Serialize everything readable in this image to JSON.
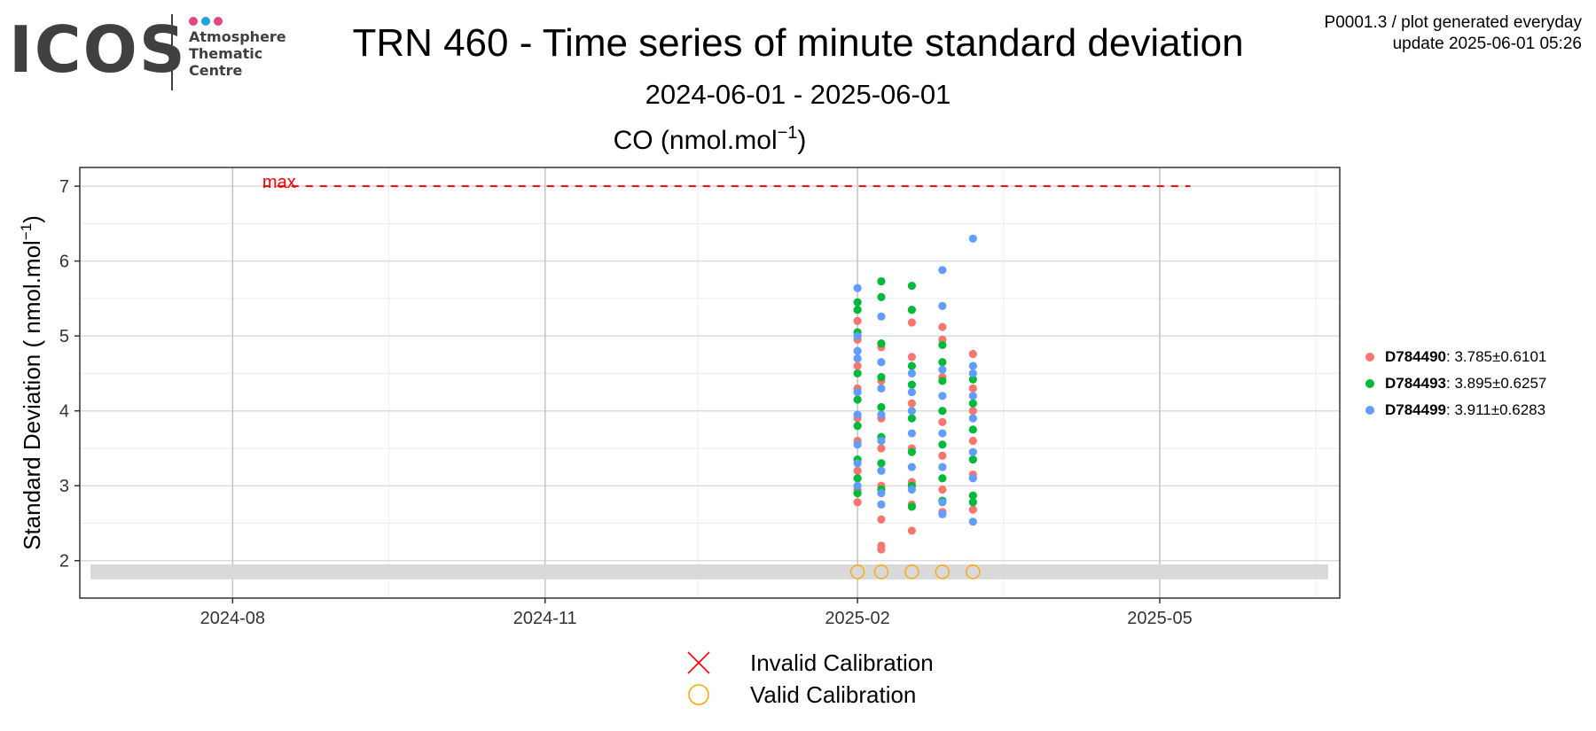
{
  "logo": {
    "word": "ICOS",
    "text_lines": [
      "Atmosphere",
      "Thematic",
      "Centre"
    ],
    "dot_colors": [
      "#e8457f",
      "#1fa4e2",
      "#e8457f"
    ]
  },
  "header": {
    "title": "TRN 460 - Time series of minute standard deviation",
    "subtitle": "2024-06-01 - 2025-06-01",
    "info_line1": "P0001.3 / plot generated everyday",
    "info_line2": "update  2025-06-01 05:26"
  },
  "chart_data": {
    "type": "scatter",
    "title": "CO (nmol.mol⁻¹)",
    "ylabel": "Standard Deviation ( nmol.mol⁻¹)",
    "xlabel": "",
    "xlim": [
      "2024-06-17",
      "2025-06-23"
    ],
    "ylim": [
      1.5,
      7.25
    ],
    "x_ticks": [
      "2024-08-01",
      "2024-11-01",
      "2025-02-01",
      "2025-05-01"
    ],
    "x_tick_labels": [
      "2024-08",
      "2024-11",
      "2025-02",
      "2025-05"
    ],
    "y_ticks": [
      2,
      3,
      4,
      5,
      6,
      7
    ],
    "grid": true,
    "threshold": {
      "label": "max",
      "value": 7,
      "color": "#ff0000",
      "from": "2024-08-10",
      "to": "2025-05-10"
    },
    "band": {
      "range": [
        1.75,
        1.95
      ],
      "color": "#d9d9d9"
    },
    "legend_position": "right",
    "series": [
      {
        "name": "D784490",
        "stat": "3.785",
        "sd": "0.6101",
        "color": "#f8766d",
        "points": [
          [
            "2025-02-01",
            2.78
          ],
          [
            "2025-02-01",
            2.95
          ],
          [
            "2025-02-01",
            3.2
          ],
          [
            "2025-02-01",
            3.6
          ],
          [
            "2025-02-01",
            3.9
          ],
          [
            "2025-02-01",
            4.3
          ],
          [
            "2025-02-01",
            4.6
          ],
          [
            "2025-02-01",
            4.95
          ],
          [
            "2025-02-01",
            5.2
          ],
          [
            "2025-02-08",
            2.15
          ],
          [
            "2025-02-08",
            2.2
          ],
          [
            "2025-02-08",
            2.55
          ],
          [
            "2025-02-08",
            3.0
          ],
          [
            "2025-02-08",
            3.5
          ],
          [
            "2025-02-08",
            3.9
          ],
          [
            "2025-02-08",
            4.4
          ],
          [
            "2025-02-08",
            4.85
          ],
          [
            "2025-02-17",
            2.4
          ],
          [
            "2025-02-17",
            2.75
          ],
          [
            "2025-02-17",
            3.05
          ],
          [
            "2025-02-17",
            3.5
          ],
          [
            "2025-02-17",
            4.1
          ],
          [
            "2025-02-17",
            4.72
          ],
          [
            "2025-02-17",
            5.18
          ],
          [
            "2025-02-26",
            2.65
          ],
          [
            "2025-02-26",
            2.95
          ],
          [
            "2025-02-26",
            3.4
          ],
          [
            "2025-02-26",
            3.85
          ],
          [
            "2025-02-26",
            4.45
          ],
          [
            "2025-02-26",
            4.95
          ],
          [
            "2025-02-26",
            5.12
          ],
          [
            "2025-03-07",
            2.68
          ],
          [
            "2025-03-07",
            3.15
          ],
          [
            "2025-03-07",
            3.6
          ],
          [
            "2025-03-07",
            4.0
          ],
          [
            "2025-03-07",
            4.3
          ],
          [
            "2025-03-07",
            4.76
          ]
        ]
      },
      {
        "name": "D784493",
        "stat": "3.895",
        "sd": "0.6257",
        "color": "#00ba38",
        "points": [
          [
            "2025-02-01",
            2.9
          ],
          [
            "2025-02-01",
            3.1
          ],
          [
            "2025-02-01",
            3.35
          ],
          [
            "2025-02-01",
            3.8
          ],
          [
            "2025-02-01",
            4.15
          ],
          [
            "2025-02-01",
            4.5
          ],
          [
            "2025-02-01",
            5.05
          ],
          [
            "2025-02-01",
            5.35
          ],
          [
            "2025-02-01",
            5.45
          ],
          [
            "2025-02-08",
            2.95
          ],
          [
            "2025-02-08",
            3.3
          ],
          [
            "2025-02-08",
            3.65
          ],
          [
            "2025-02-08",
            4.05
          ],
          [
            "2025-02-08",
            4.45
          ],
          [
            "2025-02-08",
            4.9
          ],
          [
            "2025-02-08",
            5.52
          ],
          [
            "2025-02-08",
            5.73
          ],
          [
            "2025-02-17",
            2.72
          ],
          [
            "2025-02-17",
            3.0
          ],
          [
            "2025-02-17",
            3.45
          ],
          [
            "2025-02-17",
            3.9
          ],
          [
            "2025-02-17",
            4.35
          ],
          [
            "2025-02-17",
            4.6
          ],
          [
            "2025-02-17",
            5.35
          ],
          [
            "2025-02-17",
            5.67
          ],
          [
            "2025-02-26",
            2.8
          ],
          [
            "2025-02-26",
            3.1
          ],
          [
            "2025-02-26",
            3.55
          ],
          [
            "2025-02-26",
            4.0
          ],
          [
            "2025-02-26",
            4.4
          ],
          [
            "2025-02-26",
            4.65
          ],
          [
            "2025-02-26",
            4.88
          ],
          [
            "2025-03-07",
            2.78
          ],
          [
            "2025-03-07",
            2.87
          ],
          [
            "2025-03-07",
            3.35
          ],
          [
            "2025-03-07",
            3.75
          ],
          [
            "2025-03-07",
            4.1
          ],
          [
            "2025-03-07",
            4.42
          ]
        ]
      },
      {
        "name": "D784499",
        "stat": "3.911",
        "sd": "0.6283",
        "color": "#619cff",
        "points": [
          [
            "2025-02-01",
            3.0
          ],
          [
            "2025-02-01",
            3.3
          ],
          [
            "2025-02-01",
            3.55
          ],
          [
            "2025-02-01",
            3.95
          ],
          [
            "2025-02-01",
            4.25
          ],
          [
            "2025-02-01",
            4.7
          ],
          [
            "2025-02-01",
            4.8
          ],
          [
            "2025-02-01",
            5.0
          ],
          [
            "2025-02-01",
            5.64
          ],
          [
            "2025-02-08",
            2.75
          ],
          [
            "2025-02-08",
            2.9
          ],
          [
            "2025-02-08",
            3.2
          ],
          [
            "2025-02-08",
            3.6
          ],
          [
            "2025-02-08",
            3.95
          ],
          [
            "2025-02-08",
            4.3
          ],
          [
            "2025-02-08",
            4.65
          ],
          [
            "2025-02-08",
            5.26
          ],
          [
            "2025-02-17",
            2.95
          ],
          [
            "2025-02-17",
            3.25
          ],
          [
            "2025-02-17",
            3.7
          ],
          [
            "2025-02-17",
            4.0
          ],
          [
            "2025-02-17",
            4.25
          ],
          [
            "2025-02-17",
            4.5
          ],
          [
            "2025-02-26",
            2.62
          ],
          [
            "2025-02-26",
            2.78
          ],
          [
            "2025-02-26",
            3.25
          ],
          [
            "2025-02-26",
            3.7
          ],
          [
            "2025-02-26",
            4.2
          ],
          [
            "2025-02-26",
            4.55
          ],
          [
            "2025-02-26",
            5.4
          ],
          [
            "2025-02-26",
            5.88
          ],
          [
            "2025-03-07",
            2.52
          ],
          [
            "2025-03-07",
            3.1
          ],
          [
            "2025-03-07",
            3.45
          ],
          [
            "2025-03-07",
            3.9
          ],
          [
            "2025-03-07",
            4.2
          ],
          [
            "2025-03-07",
            4.5
          ],
          [
            "2025-03-07",
            4.6
          ],
          [
            "2025-03-07",
            6.3
          ]
        ]
      }
    ],
    "valid_calibrations": [
      [
        "2025-02-01",
        1.85
      ],
      [
        "2025-02-08",
        1.85
      ],
      [
        "2025-02-17",
        1.85
      ],
      [
        "2025-02-26",
        1.85
      ],
      [
        "2025-03-07",
        1.85
      ]
    ],
    "calibration_legend": [
      {
        "label": "Invalid Calibration",
        "icon": "cross-icon",
        "color": "#ff0000"
      },
      {
        "label": "Valid Calibration",
        "icon": "circle-icon",
        "color": "#ffa500"
      }
    ]
  }
}
